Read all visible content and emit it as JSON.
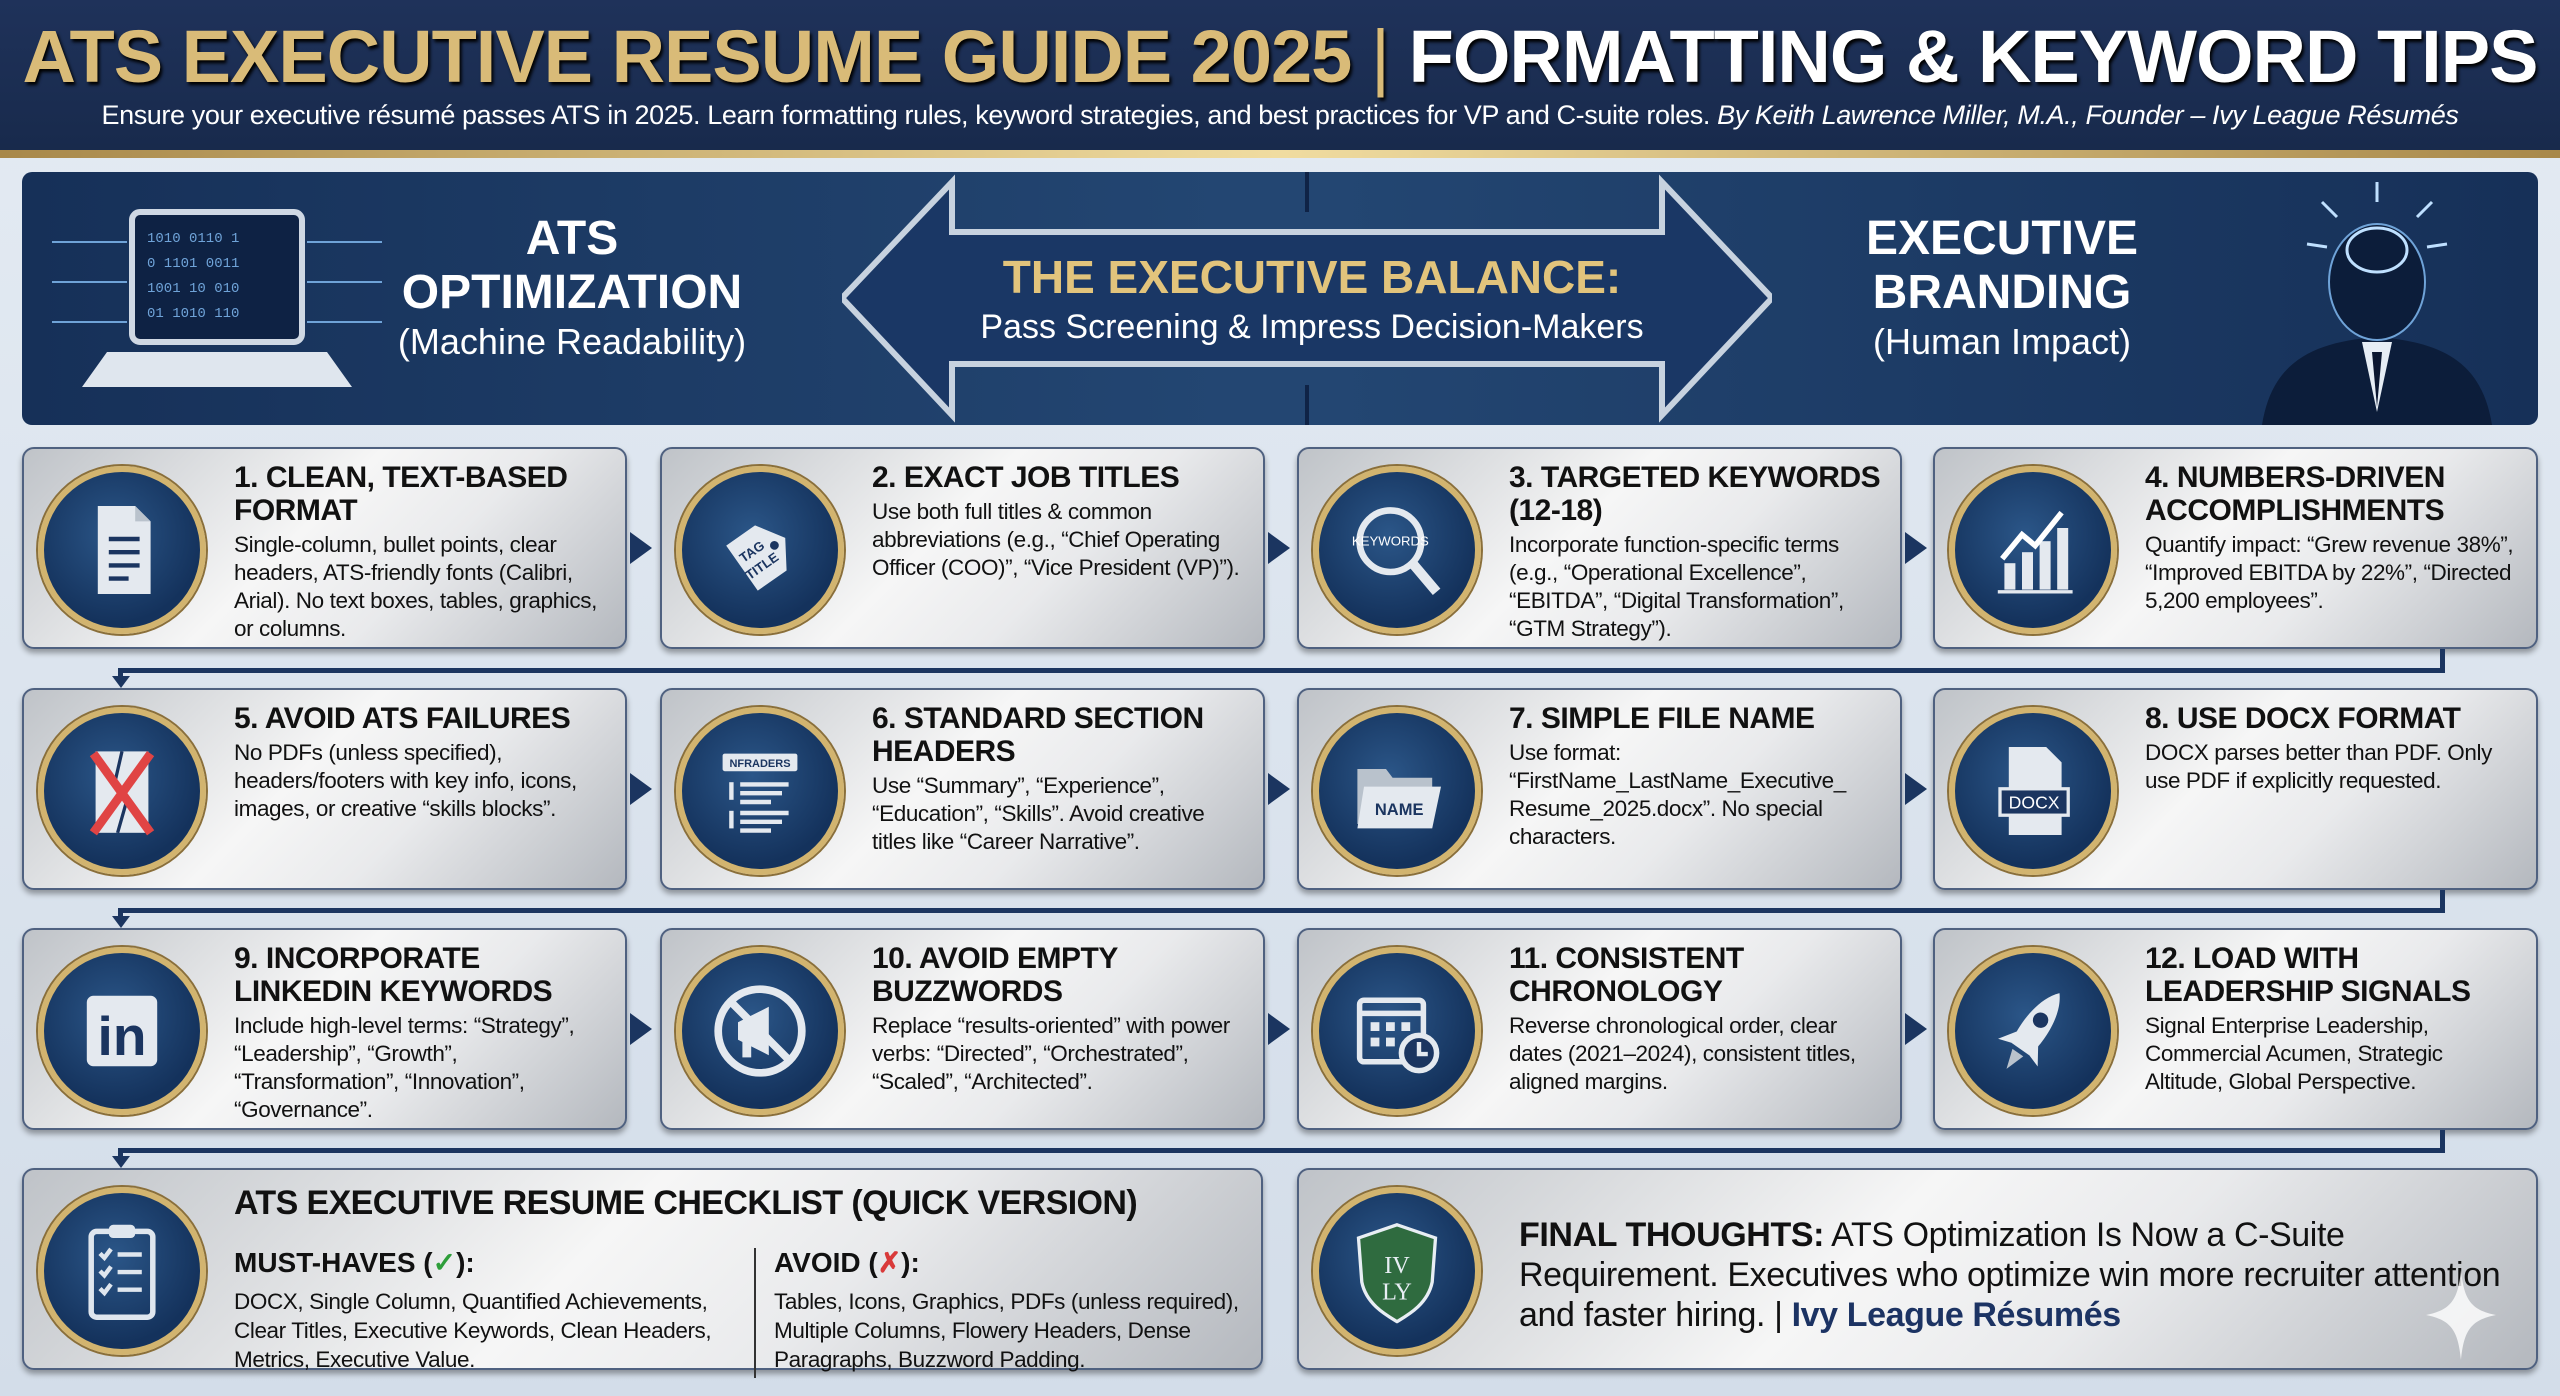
{
  "header": {
    "title_gold": "ATS EXECUTIVE RESUME GUIDE 2025",
    "title_sep": "|",
    "title_white": "FORMATTING & KEYWORD TIPS",
    "subtitle": "Ensure your executive résumé passes ATS in 2025. Learn formatting rules, keyword strategies, and best practices for VP and C-suite roles.",
    "byline": "By Keith Lawrence Miller, M.A., Founder – Ivy League Résumés"
  },
  "banner": {
    "left_heading_1": "ATS",
    "left_heading_2": "OPTIMIZATION",
    "left_sub": "(Machine Readability)",
    "center_heading": "THE EXECUTIVE BALANCE:",
    "center_sub": "Pass Screening & Impress Decision-Makers",
    "right_heading_1": "EXECUTIVE",
    "right_heading_2": "BRANDING",
    "right_sub": "(Human Impact)"
  },
  "cards": [
    {
      "title": "1. Clean, Text-Based Format",
      "body": "Single-column, bullet points, clear headers, ATS-friendly fonts (Calibri, Arial). No text boxes, tables, graphics, or columns.",
      "icon": "document-icon"
    },
    {
      "title": "2. Exact Job Titles",
      "body": "Use both full titles & common abbreviations (e.g., “Chief Operating Officer (COO)”, “Vice President (VP)”).",
      "icon": "tag-icon",
      "icon_text": "TAG TITLE"
    },
    {
      "title": "3. Targeted Keywords (12-18)",
      "body": "Incorporate function-specific terms (e.g., “Operational Excellence”, “EBITDA”, “Digital Transformation”, “GTM Strategy”).",
      "icon": "magnifier-icon",
      "icon_text": "KEYWORDS"
    },
    {
      "title": "4. Numbers-Driven Accomplishments",
      "body": "Quantify impact: “Grew revenue 38%”, “Improved EBITDA by 22%”, “Directed 5,200 employees”.",
      "icon": "bar-chart-icon"
    },
    {
      "title": "5. Avoid ATS Failures",
      "body": "No PDFs (unless specified), headers/footers with key info, icons, images, or creative “skills blocks”.",
      "icon": "broken-document-x-icon"
    },
    {
      "title": "6. Standard Section Headers",
      "body": "Use “Summary”, “Experience”, “Education”, “Skills”. Avoid creative titles like “Career Narrative”.",
      "icon": "headers-list-icon",
      "icon_text": "NFRADERS"
    },
    {
      "title": "7. Simple File Name",
      "body": "Use format: “FirstName_LastName_Executive_ Resume_2025.docx”. No special characters.",
      "icon": "folder-icon",
      "icon_text": "NAME"
    },
    {
      "title": "8. Use DOCX Format",
      "body": "DOCX parses better than PDF. Only use PDF if explicitly requested.",
      "icon": "docx-file-icon",
      "icon_text": "DOCX"
    },
    {
      "title": "9. Incorporate LinkedIn Keywords",
      "body": "Include high-level terms: “Strategy”, “Leadership”, “Growth”, “Transformation”, “Innovation”, “Governance”.",
      "icon": "linkedin-icon",
      "icon_text": "in"
    },
    {
      "title": "10. Avoid Empty Buzzwords",
      "body": "Replace “results-oriented” with power verbs: “Directed”, “Orchestrated”, “Scaled”, “Architected”.",
      "icon": "no-megaphone-icon"
    },
    {
      "title": "11. Consistent Chronology",
      "body": "Reverse chronological order, clear dates (2021–2024), consistent titles, aligned margins.",
      "icon": "calendar-clock-icon"
    },
    {
      "title": "12. Load With Leadership Signals",
      "body": "Signal Enterprise Leadership, Commercial Acumen, Strategic Altitude, Global Perspective.",
      "icon": "rocket-icon"
    }
  ],
  "checklist": {
    "title": "ATS EXECUTIVE RESUME CHECKLIST (QUICK VERSION)",
    "must_label": "MUST-HAVES (",
    "must_mark": "✓",
    "must_end": "):",
    "must_body": "DOCX, Single Column, Quantified Achievements, Clear Titles, Executive Keywords, Clean Headers, Metrics, Executive Value.",
    "avoid_label": "AVOID (",
    "avoid_mark": "✗",
    "avoid_end": "):",
    "avoid_body": "Tables, Icons, Graphics, PDFs (unless required), Multiple Columns, Flowery Headers, Dense Paragraphs, Buzzword Padding."
  },
  "final": {
    "lead": "FINAL THOUGHTS:",
    "text": " ATS Optimization Is Now a C-Suite Requirement. Executives who optimize win more recruiter attention and faster hiring. | ",
    "brand": "Ivy League Résumés",
    "logo_text": "IVY LY"
  },
  "colors": {
    "navy": "#1b3560",
    "gold": "#d2b46f",
    "check": "#2e9e3a",
    "cross": "#d93a3a",
    "shield": "#2f6b3f"
  }
}
